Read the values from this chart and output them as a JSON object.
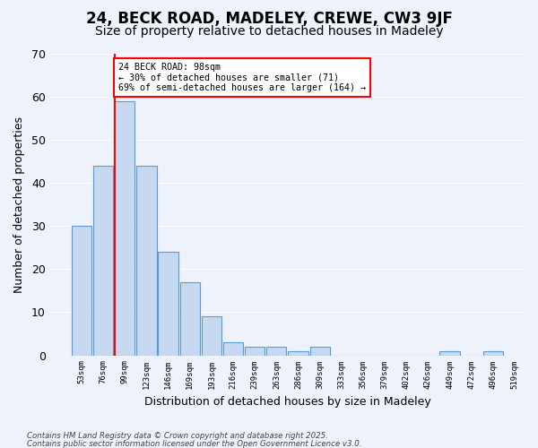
{
  "title1": "24, BECK ROAD, MADELEY, CREWE, CW3 9JF",
  "title2": "Size of property relative to detached houses in Madeley",
  "xlabel": "Distribution of detached houses by size in Madeley",
  "ylabel": "Number of detached properties",
  "bins": [
    "53sqm",
    "76sqm",
    "99sqm",
    "123sqm",
    "146sqm",
    "169sqm",
    "193sqm",
    "216sqm",
    "239sqm",
    "263sqm",
    "286sqm",
    "309sqm",
    "333sqm",
    "356sqm",
    "379sqm",
    "402sqm",
    "426sqm",
    "449sqm",
    "472sqm",
    "496sqm",
    "519sqm"
  ],
  "values": [
    30,
    44,
    59,
    44,
    24,
    17,
    9,
    3,
    2,
    2,
    1,
    2,
    0,
    0,
    0,
    0,
    0,
    1,
    0,
    1
  ],
  "bar_color": "#c6d9f0",
  "bar_edge_color": "#5b9bd5",
  "red_line_index": 2,
  "annotation_text": "24 BECK ROAD: 98sqm\n← 30% of detached houses are smaller (71)\n69% of semi-detached houses are larger (164) →",
  "annotation_box_color": "#ffffff",
  "annotation_box_edge": "#ff0000",
  "footer1": "Contains HM Land Registry data © Crown copyright and database right 2025.",
  "footer2": "Contains public sector information licensed under the Open Government Licence v3.0.",
  "ylim": [
    0,
    70
  ],
  "yticks": [
    0,
    10,
    20,
    30,
    40,
    50,
    60,
    70
  ],
  "bg_color": "#eef2fb",
  "grid_color": "#ffffff",
  "title1_fontsize": 12,
  "title2_fontsize": 10
}
